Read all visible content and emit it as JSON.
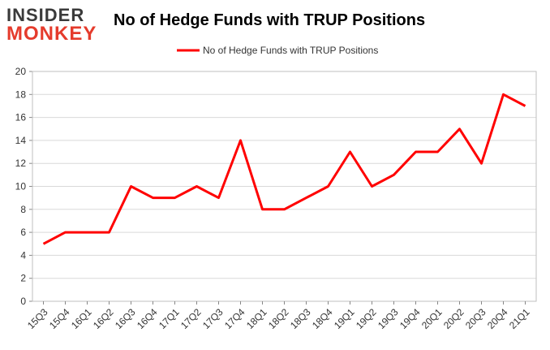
{
  "logo": {
    "line1": "INSIDER",
    "line2": "MONKEY"
  },
  "chart_data": {
    "type": "line",
    "title": "No of Hedge Funds with TRUP Positions",
    "xlabel": "",
    "ylabel": "",
    "categories": [
      "15Q3",
      "15Q4",
      "16Q1",
      "16Q2",
      "16Q3",
      "16Q4",
      "17Q1",
      "17Q2",
      "17Q3",
      "17Q4",
      "18Q1",
      "18Q2",
      "18Q3",
      "18Q4",
      "19Q1",
      "19Q2",
      "19Q3",
      "19Q4",
      "20Q1",
      "20Q2",
      "20Q3",
      "20Q4",
      "21Q1"
    ],
    "series": [
      {
        "name": "No of Hedge Funds with TRUP Positions",
        "color": "#ff0000",
        "values": [
          5,
          6,
          6,
          6,
          10,
          9,
          9,
          10,
          9,
          14,
          8,
          8,
          9,
          10,
          13,
          10,
          11,
          13,
          13,
          15,
          12,
          18,
          17
        ]
      }
    ],
    "ylim": [
      0,
      20
    ],
    "yticks": [
      0,
      2,
      4,
      6,
      8,
      10,
      12,
      14,
      16,
      18,
      20
    ],
    "grid": true,
    "legend_position": "top-center"
  }
}
